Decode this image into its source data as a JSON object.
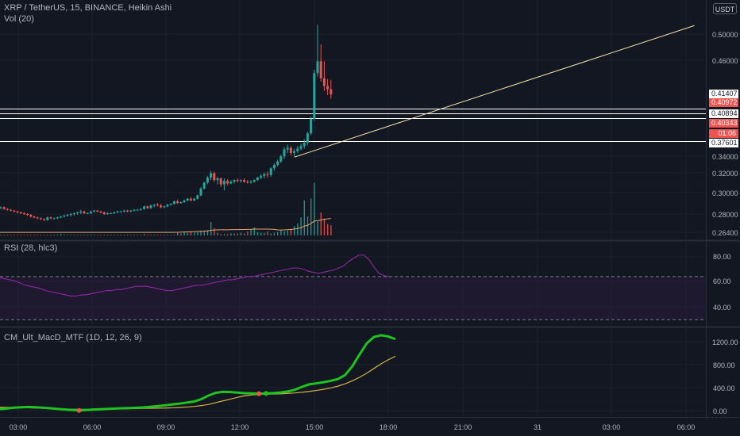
{
  "header": {
    "main_title": "XRP / TetherUS, 15, BINANCE, Heikin Ashi",
    "volume_label": "Vol (20)",
    "rsi_label": "RSI (28, hlc3)",
    "macd_label": "CM_Ult_MacD_MTF (1D, 12, 26, 9)",
    "currency_button": "USDT"
  },
  "price_axis": [
    "0.50000",
    "0.46000",
    "0.34000",
    "0.32000",
    "0.30000",
    "0.28000",
    "0.26400"
  ],
  "rsi_axis": [
    "80.00",
    "60.00",
    "40.00"
  ],
  "macd_axis": [
    "1200.00",
    "800.00",
    "400.00",
    "0.00"
  ],
  "time_axis": [
    "03:00",
    "06:00",
    "09:00",
    "12:00",
    "15:00",
    "18:00",
    "21:00",
    "31",
    "03:00",
    "06:00"
  ],
  "price_labels": [
    {
      "text": "0.41407",
      "style": "level"
    },
    {
      "text": "0.40972",
      "style": "sell"
    },
    {
      "text": "0.40894",
      "style": "level"
    },
    {
      "text": "0.40343",
      "style": "sell"
    },
    {
      "text": "01:06",
      "style": "countdown"
    },
    {
      "text": "0.37601",
      "style": "level"
    }
  ],
  "colors": {
    "background": "#131722",
    "up": "#26a69a",
    "down": "#ef5350",
    "rsi": "#9c27b0",
    "rsi_band": "#2a1b3d",
    "macd": "#1ec41e",
    "signal": "#d4b347",
    "trend_line": "#f0e4a8",
    "volume_ma": "#e8a46c"
  },
  "chart_data": [
    {
      "type": "candlestick",
      "title": "XRP / TetherUS, 15, BINANCE, Heikin Ashi",
      "ylim": [
        0.262,
        0.516
      ],
      "candles": [
        [
          0.297,
          0.299,
          0.296,
          0.298
        ],
        [
          0.298,
          0.299,
          0.295,
          0.296
        ],
        [
          0.296,
          0.297,
          0.294,
          0.295
        ],
        [
          0.295,
          0.296,
          0.293,
          0.294
        ],
        [
          0.294,
          0.295,
          0.292,
          0.293
        ],
        [
          0.293,
          0.294,
          0.291,
          0.292
        ],
        [
          0.292,
          0.293,
          0.29,
          0.291
        ],
        [
          0.291,
          0.292,
          0.289,
          0.29
        ],
        [
          0.29,
          0.291,
          0.288,
          0.289
        ],
        [
          0.289,
          0.29,
          0.286,
          0.287
        ],
        [
          0.287,
          0.288,
          0.285,
          0.286
        ],
        [
          0.286,
          0.287,
          0.284,
          0.285
        ],
        [
          0.285,
          0.286,
          0.283,
          0.284
        ],
        [
          0.284,
          0.285,
          0.282,
          0.283
        ],
        [
          0.283,
          0.287,
          0.282,
          0.286
        ],
        [
          0.286,
          0.287,
          0.284,
          0.285
        ],
        [
          0.285,
          0.286,
          0.284,
          0.285
        ],
        [
          0.285,
          0.287,
          0.284,
          0.286
        ],
        [
          0.286,
          0.288,
          0.285,
          0.287
        ],
        [
          0.287,
          0.289,
          0.286,
          0.288
        ],
        [
          0.288,
          0.29,
          0.287,
          0.289
        ],
        [
          0.289,
          0.291,
          0.287,
          0.29
        ],
        [
          0.29,
          0.292,
          0.288,
          0.291
        ],
        [
          0.291,
          0.293,
          0.289,
          0.292
        ],
        [
          0.292,
          0.295,
          0.29,
          0.293
        ],
        [
          0.293,
          0.294,
          0.29,
          0.291
        ],
        [
          0.291,
          0.292,
          0.29,
          0.291
        ],
        [
          0.291,
          0.294,
          0.29,
          0.293
        ],
        [
          0.293,
          0.295,
          0.292,
          0.294
        ],
        [
          0.294,
          0.295,
          0.292,
          0.293
        ],
        [
          0.293,
          0.294,
          0.291,
          0.292
        ],
        [
          0.292,
          0.293,
          0.289,
          0.29
        ],
        [
          0.29,
          0.292,
          0.289,
          0.291
        ],
        [
          0.291,
          0.292,
          0.29,
          0.291
        ],
        [
          0.291,
          0.293,
          0.29,
          0.292
        ],
        [
          0.292,
          0.294,
          0.291,
          0.293
        ],
        [
          0.293,
          0.294,
          0.292,
          0.293
        ],
        [
          0.293,
          0.295,
          0.292,
          0.294
        ],
        [
          0.294,
          0.295,
          0.292,
          0.293
        ],
        [
          0.293,
          0.295,
          0.292,
          0.294
        ],
        [
          0.294,
          0.296,
          0.293,
          0.295
        ],
        [
          0.295,
          0.296,
          0.294,
          0.295
        ],
        [
          0.295,
          0.297,
          0.294,
          0.296
        ],
        [
          0.296,
          0.3,
          0.295,
          0.299
        ],
        [
          0.299,
          0.3,
          0.296,
          0.297
        ],
        [
          0.297,
          0.301,
          0.296,
          0.3
        ],
        [
          0.3,
          0.302,
          0.298,
          0.301
        ],
        [
          0.301,
          0.303,
          0.299,
          0.3
        ],
        [
          0.3,
          0.302,
          0.297,
          0.298
        ],
        [
          0.298,
          0.3,
          0.297,
          0.299
        ],
        [
          0.299,
          0.302,
          0.298,
          0.301
        ],
        [
          0.301,
          0.303,
          0.3,
          0.302
        ],
        [
          0.302,
          0.306,
          0.301,
          0.305
        ],
        [
          0.305,
          0.307,
          0.302,
          0.303
        ],
        [
          0.303,
          0.305,
          0.302,
          0.304
        ],
        [
          0.304,
          0.307,
          0.303,
          0.306
        ],
        [
          0.306,
          0.309,
          0.305,
          0.308
        ],
        [
          0.308,
          0.31,
          0.305,
          0.306
        ],
        [
          0.306,
          0.309,
          0.305,
          0.308
        ],
        [
          0.308,
          0.313,
          0.307,
          0.312
        ],
        [
          0.312,
          0.322,
          0.311,
          0.32
        ],
        [
          0.32,
          0.328,
          0.319,
          0.327
        ],
        [
          0.327,
          0.335,
          0.325,
          0.333
        ],
        [
          0.333,
          0.341,
          0.33,
          0.338
        ],
        [
          0.338,
          0.34,
          0.328,
          0.33
        ],
        [
          0.33,
          0.334,
          0.325,
          0.332
        ],
        [
          0.332,
          0.333,
          0.322,
          0.325
        ],
        [
          0.325,
          0.332,
          0.318,
          0.329
        ],
        [
          0.329,
          0.331,
          0.324,
          0.326
        ],
        [
          0.326,
          0.33,
          0.325,
          0.328
        ],
        [
          0.328,
          0.331,
          0.326,
          0.33
        ],
        [
          0.33,
          0.332,
          0.327,
          0.329
        ],
        [
          0.329,
          0.331,
          0.327,
          0.33
        ],
        [
          0.33,
          0.332,
          0.327,
          0.328
        ],
        [
          0.328,
          0.33,
          0.326,
          0.327
        ],
        [
          0.327,
          0.33,
          0.326,
          0.328
        ],
        [
          0.328,
          0.331,
          0.327,
          0.33
        ],
        [
          0.33,
          0.334,
          0.329,
          0.333
        ],
        [
          0.333,
          0.337,
          0.331,
          0.335
        ],
        [
          0.335,
          0.339,
          0.332,
          0.337
        ],
        [
          0.337,
          0.34,
          0.333,
          0.336
        ],
        [
          0.336,
          0.345,
          0.334,
          0.344
        ],
        [
          0.344,
          0.35,
          0.341,
          0.348
        ],
        [
          0.348,
          0.354,
          0.346,
          0.352
        ],
        [
          0.352,
          0.36,
          0.35,
          0.358
        ],
        [
          0.358,
          0.369,
          0.355,
          0.366
        ],
        [
          0.366,
          0.372,
          0.362,
          0.368
        ],
        [
          0.368,
          0.37,
          0.359,
          0.362
        ],
        [
          0.362,
          0.367,
          0.358,
          0.364
        ],
        [
          0.364,
          0.37,
          0.362,
          0.367
        ],
        [
          0.367,
          0.373,
          0.365,
          0.37
        ],
        [
          0.37,
          0.378,
          0.367,
          0.374
        ],
        [
          0.374,
          0.387,
          0.371,
          0.385
        ],
        [
          0.385,
          0.405,
          0.383,
          0.402
        ],
        [
          0.402,
          0.46,
          0.4,
          0.456
        ],
        [
          0.456,
          0.513,
          0.452,
          0.47
        ],
        [
          0.47,
          0.49,
          0.446,
          0.45
        ],
        [
          0.45,
          0.47,
          0.435,
          0.441
        ],
        [
          0.441,
          0.449,
          0.43,
          0.437
        ],
        [
          0.437,
          0.448,
          0.426,
          0.431
        ]
      ],
      "horizontal_levels": [
        0.41407,
        0.40894,
        0.40343,
        0.37601
      ],
      "trend_line": [
        {
          "bar": 88,
          "price": 0.357
        },
        {
          "bar": 208,
          "price": 0.512
        }
      ]
    },
    {
      "type": "bar",
      "title": "Vol (20)",
      "ylim": [
        0,
        100
      ],
      "values": [
        1,
        1,
        1,
        1,
        1,
        1,
        1,
        1,
        1,
        1,
        1,
        1,
        1,
        1,
        1,
        1,
        1,
        1,
        1,
        1,
        1,
        1,
        1,
        1,
        1,
        1,
        1,
        1,
        1,
        1,
        1,
        1,
        1,
        1,
        1,
        1,
        1,
        1,
        1,
        1,
        1,
        1,
        1,
        1,
        1,
        1,
        1,
        1,
        1,
        1,
        1,
        1,
        2,
        1,
        1,
        1,
        1,
        1,
        1,
        1,
        1,
        1,
        1,
        1,
        1,
        1,
        1,
        1,
        1,
        1,
        1,
        1,
        1,
        1,
        1,
        1,
        1,
        2,
        1,
        1,
        1,
        1,
        1,
        1,
        1,
        1,
        1,
        5,
        3,
        5,
        4,
        6,
        4,
        5,
        7,
        6,
        8,
        20,
        11,
        4,
        2,
        2,
        2,
        3,
        3,
        3,
        4,
        3,
        6,
        9,
        12,
        5,
        4,
        4,
        6,
        3,
        4,
        5,
        8,
        6,
        7,
        10,
        14,
        18,
        27,
        52,
        28,
        55,
        78,
        21,
        34,
        25,
        17,
        15
      ]
    },
    {
      "type": "line",
      "title": "RSI (28, hlc3)",
      "ylim": [
        25,
        95
      ],
      "levels": [
        70,
        30
      ],
      "values": [
        69,
        68,
        67,
        66,
        64,
        62,
        61,
        60,
        59,
        57,
        56,
        55,
        54,
        53,
        52,
        52,
        53,
        53,
        54,
        55,
        56,
        57,
        57,
        58,
        58,
        59,
        60,
        61,
        61,
        61,
        60,
        59,
        58,
        57,
        57,
        58,
        59,
        60,
        61,
        62,
        62,
        63,
        64,
        65,
        66,
        67,
        67,
        68,
        69,
        70,
        70,
        71,
        72,
        73,
        74,
        75,
        76,
        77,
        78,
        78,
        77,
        75,
        74,
        73,
        74,
        75,
        76,
        78,
        80,
        84,
        87,
        90,
        90,
        86,
        79,
        73,
        71,
        70
      ]
    },
    {
      "type": "line",
      "title": "CM_Ult_MacD_MTF (1D, 12, 26, 9)",
      "ylim": [
        -50,
        1330
      ],
      "series": [
        {
          "values": [
            30,
            42,
            55,
            62,
            66,
            62,
            54,
            44,
            33,
            24,
            14,
            8,
            14,
            22,
            28,
            34,
            40,
            44,
            48,
            54,
            60,
            70,
            82,
            96,
            110,
            124,
            142,
            160,
            200,
            262,
            308,
            326,
            322,
            312,
            302,
            298,
            294,
            298,
            304,
            314,
            330,
            360,
            410,
            452,
            470,
            490,
            512,
            542,
            612,
            760,
            960,
            1150,
            1260,
            1290,
            1270,
            1225
          ]
        },
        {
          "values": [
            60,
            60,
            58,
            55,
            52,
            48,
            44,
            40,
            36,
            32,
            28,
            26,
            26,
            28,
            30,
            32,
            34,
            36,
            38,
            40,
            42,
            44,
            46,
            48,
            52,
            58,
            66,
            76,
            90,
            110,
            140,
            170,
            200,
            230,
            256,
            272,
            280,
            284,
            288,
            292,
            298,
            306,
            318,
            332,
            348,
            368,
            392,
            422,
            462,
            512,
            572,
            642,
            722,
            802,
            872,
            932
          ]
        }
      ],
      "markers": [
        {
          "index": 11,
          "color": "down"
        },
        {
          "index": 36,
          "color": "down"
        },
        {
          "index": 37,
          "color": "up"
        }
      ]
    }
  ]
}
